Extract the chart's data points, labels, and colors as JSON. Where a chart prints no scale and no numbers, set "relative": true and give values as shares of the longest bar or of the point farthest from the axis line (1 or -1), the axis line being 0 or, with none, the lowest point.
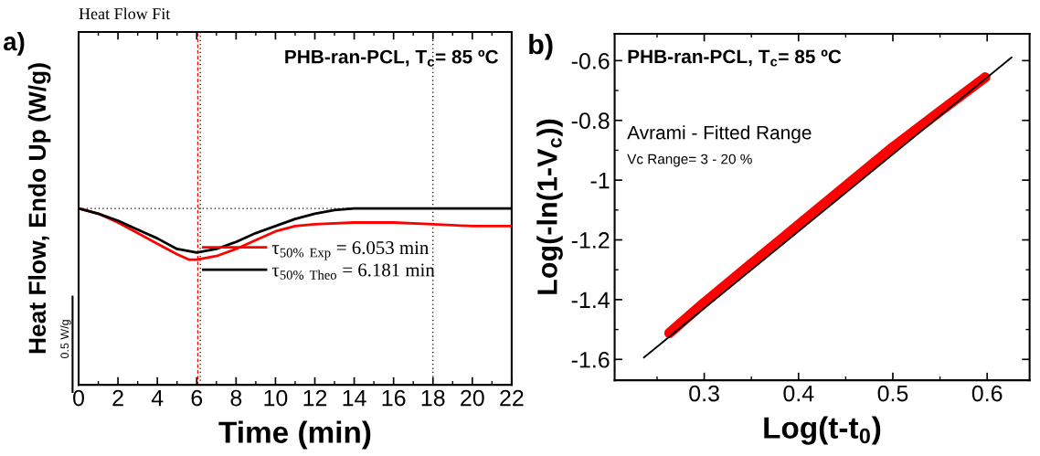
{
  "chart_data": [
    {
      "type": "line",
      "title": "Heat Flow Fit",
      "xlabel": "Time (min)",
      "ylabel": "Heat Flow, Endo Up (W/g)",
      "relative": true,
      "xlim": [
        0,
        22
      ],
      "xticks": [
        0,
        2,
        4,
        6,
        8,
        10,
        12,
        14,
        16,
        18,
        20,
        22
      ],
      "grid": false,
      "legend": "center",
      "series": [
        {
          "name": "τ$_{50% Exp}$ = 6.053 min",
          "color": "#ff0000",
          "x": [
            0,
            1,
            2,
            3,
            4,
            5,
            5.6,
            6,
            7,
            8,
            9,
            10,
            11,
            12,
            14,
            16,
            18,
            20,
            22
          ],
          "values": [
            1.0,
            0.97,
            0.92,
            0.86,
            0.8,
            0.74,
            0.71,
            0.71,
            0.73,
            0.77,
            0.82,
            0.87,
            0.9,
            0.91,
            0.92,
            0.92,
            0.91,
            0.9,
            0.9
          ]
        },
        {
          "name": "τ$_{50% Theo}$ = 6.181 min",
          "color": "#000000",
          "x": [
            0,
            1,
            2,
            3,
            4,
            5,
            6,
            7,
            8,
            9,
            10,
            11,
            12,
            13,
            14,
            16,
            18,
            20,
            22
          ],
          "values": [
            1.0,
            0.97,
            0.93,
            0.88,
            0.83,
            0.77,
            0.75,
            0.77,
            0.81,
            0.86,
            0.9,
            0.94,
            0.97,
            0.99,
            1.0,
            1.0,
            1.0,
            1.0,
            1.0
          ]
        }
      ],
      "ref_lines": [
        {
          "axis": "x",
          "value": 6.053,
          "color": "#ff0000",
          "line_style": "dashed"
        },
        {
          "axis": "x",
          "value": 6.181,
          "color": "#000000",
          "line_style": "dotted"
        },
        {
          "axis": "x",
          "value": 18,
          "color": "#000000",
          "line_style": "dotted"
        },
        {
          "axis": "y",
          "value": 1,
          "color": "#000000",
          "line_style": "dotted"
        }
      ],
      "annotations": [
        "a)",
        "PHB-ran-PCL, T$_{c}$= 85 ºC",
        "0.5 W/g"
      ]
    },
    {
      "type": "line",
      "xlabel": "Log(t-t$_{0}$)",
      "ylabel": "Log(-ln(1-V$_{c}$))",
      "xlim": [
        0.205,
        0.645
      ],
      "xticks": [
        0.3,
        0.4,
        0.5,
        0.6
      ],
      "ylim": [
        -1.67,
        -0.51
      ],
      "yticks": [
        -1.6,
        -1.4,
        -1.2,
        -1,
        -0.8,
        -0.6
      ],
      "grid": false,
      "series": [
        {
          "color": "#ff0000",
          "x": [
            0.263,
            0.3,
            0.35,
            0.4,
            0.45,
            0.5,
            0.55,
            0.598
          ],
          "values": [
            -1.512,
            -1.41,
            -1.28,
            -1.15,
            -1.02,
            -0.89,
            -0.77,
            -0.656
          ]
        },
        {
          "color": "#000000",
          "x": [
            0.236,
            0.626
          ],
          "values": [
            -1.594,
            -0.589
          ]
        }
      ],
      "annotations": [
        "b)",
        "PHB-ran-PCL, T$_{c}$= 85 ºC",
        "Avrami - Fitted Range",
        "Vc Range= 3 - 20 %"
      ]
    }
  ]
}
